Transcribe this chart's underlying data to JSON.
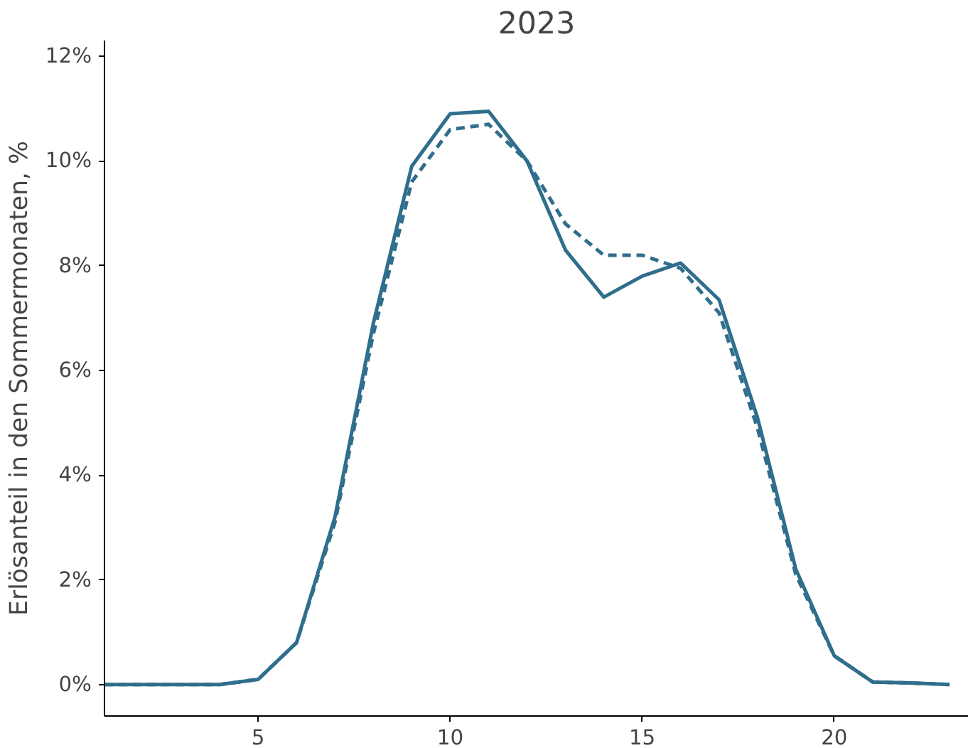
{
  "chart_data": {
    "type": "line",
    "title": "2023",
    "ylabel": "Erlösanteil in den Sommermonaten, %",
    "x": [
      1,
      2,
      3,
      4,
      5,
      6,
      7,
      8,
      9,
      10,
      11,
      12,
      13,
      14,
      15,
      16,
      17,
      18,
      19,
      20,
      21,
      22,
      23
    ],
    "series": [
      {
        "color": "#2f6e8c",
        "line_style": "dashed",
        "values": [
          0,
          0,
          0,
          0,
          0.1,
          0.8,
          3.1,
          6.7,
          9.6,
          10.6,
          10.7,
          10.0,
          8.8,
          8.2,
          8.2,
          7.95,
          7.1,
          4.9,
          2.1,
          0.55,
          0.05,
          0.03,
          0
        ]
      },
      {
        "color": "#2f6e8c",
        "line_style": "solid",
        "values": [
          0,
          0,
          0,
          0,
          0.1,
          0.8,
          3.2,
          6.9,
          9.9,
          10.9,
          10.95,
          10.0,
          8.3,
          7.4,
          7.8,
          8.05,
          7.35,
          5.1,
          2.2,
          0.55,
          0.05,
          0.03,
          0
        ]
      }
    ],
    "xlim": [
      1,
      23.5
    ],
    "xticks": [
      5,
      10,
      15,
      20
    ],
    "ylim": [
      -0.6,
      12.3
    ],
    "yticks": [
      {
        "value": 0,
        "label": "0%"
      },
      {
        "value": 2,
        "label": "2%"
      },
      {
        "value": 4,
        "label": "4%"
      },
      {
        "value": 6,
        "label": "6%"
      },
      {
        "value": 8,
        "label": "8%"
      },
      {
        "value": 10,
        "label": "10%"
      },
      {
        "value": 12,
        "label": "12%"
      }
    ]
  }
}
